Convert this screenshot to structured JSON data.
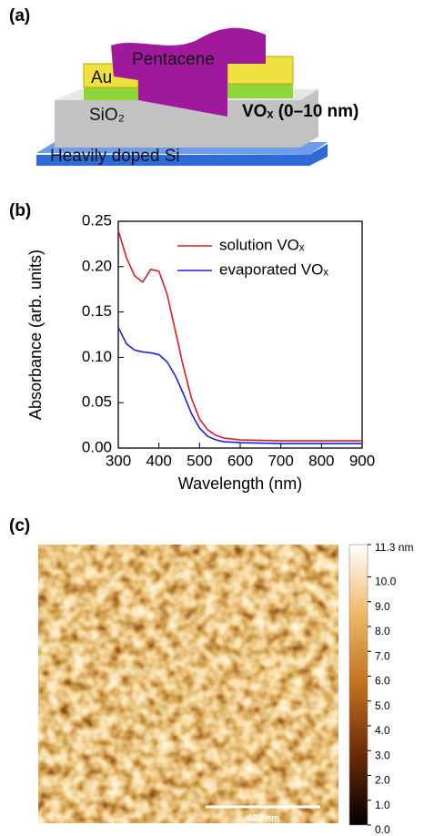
{
  "panel_a": {
    "label": "(a)",
    "layers": {
      "pentacene": "Pentacene",
      "au": "Au",
      "sio2": "SiO₂",
      "vox": "VOₓ (0–10 nm)",
      "si": "Heavily doped Si"
    }
  },
  "panel_b": {
    "label": "(b)"
  },
  "chart_data": {
    "type": "line",
    "xlabel": "Wavelength (nm)",
    "ylabel": "Absorbance (arb. units)",
    "x": [
      300,
      320,
      340,
      360,
      380,
      400,
      420,
      440,
      460,
      480,
      500,
      520,
      540,
      560,
      600,
      700,
      800,
      900
    ],
    "series": [
      {
        "name": "solution VOₓ",
        "color": "#d42020",
        "values": [
          0.24,
          0.21,
          0.19,
          0.183,
          0.197,
          0.195,
          0.17,
          0.13,
          0.09,
          0.055,
          0.032,
          0.02,
          0.014,
          0.011,
          0.009,
          0.008,
          0.008,
          0.008
        ]
      },
      {
        "name": "evaporated VOₓ",
        "color": "#2020e0",
        "values": [
          0.133,
          0.115,
          0.108,
          0.106,
          0.105,
          0.103,
          0.095,
          0.08,
          0.06,
          0.038,
          0.022,
          0.013,
          0.009,
          0.007,
          0.006,
          0.005,
          0.005,
          0.005
        ]
      }
    ],
    "xlim": [
      300,
      900
    ],
    "xticks": [
      300,
      400,
      500,
      600,
      700,
      800,
      900
    ],
    "ylim": [
      0,
      0.25
    ],
    "yticks": [
      {
        "value": 0,
        "label": "0.00"
      },
      {
        "value": 0.05,
        "label": "0.05"
      },
      {
        "value": 0.1,
        "label": "0.10"
      },
      {
        "value": 0.15,
        "label": "0.15"
      },
      {
        "value": 0.2,
        "label": "0.20"
      },
      {
        "value": 0.25,
        "label": "0.25"
      }
    ],
    "legend": "upper right"
  },
  "panel_c": {
    "label": "(c)",
    "scale_bar": "400 nm",
    "colorbar": {
      "range": [
        0,
        11.3
      ],
      "ticks": [
        {
          "value": 11.3,
          "label": "11.3 nm"
        },
        {
          "value": 10,
          "label": "10.0"
        },
        {
          "value": 9,
          "label": "9.0"
        },
        {
          "value": 8,
          "label": "8.0"
        },
        {
          "value": 7,
          "label": "7.0"
        },
        {
          "value": 6,
          "label": "6.0"
        },
        {
          "value": 5,
          "label": "5.0"
        },
        {
          "value": 4,
          "label": "4.0"
        },
        {
          "value": 3,
          "label": "3.0"
        },
        {
          "value": 2,
          "label": "2.0"
        },
        {
          "value": 1,
          "label": "1.0"
        },
        {
          "value": 0,
          "label": "0.0"
        }
      ]
    }
  }
}
